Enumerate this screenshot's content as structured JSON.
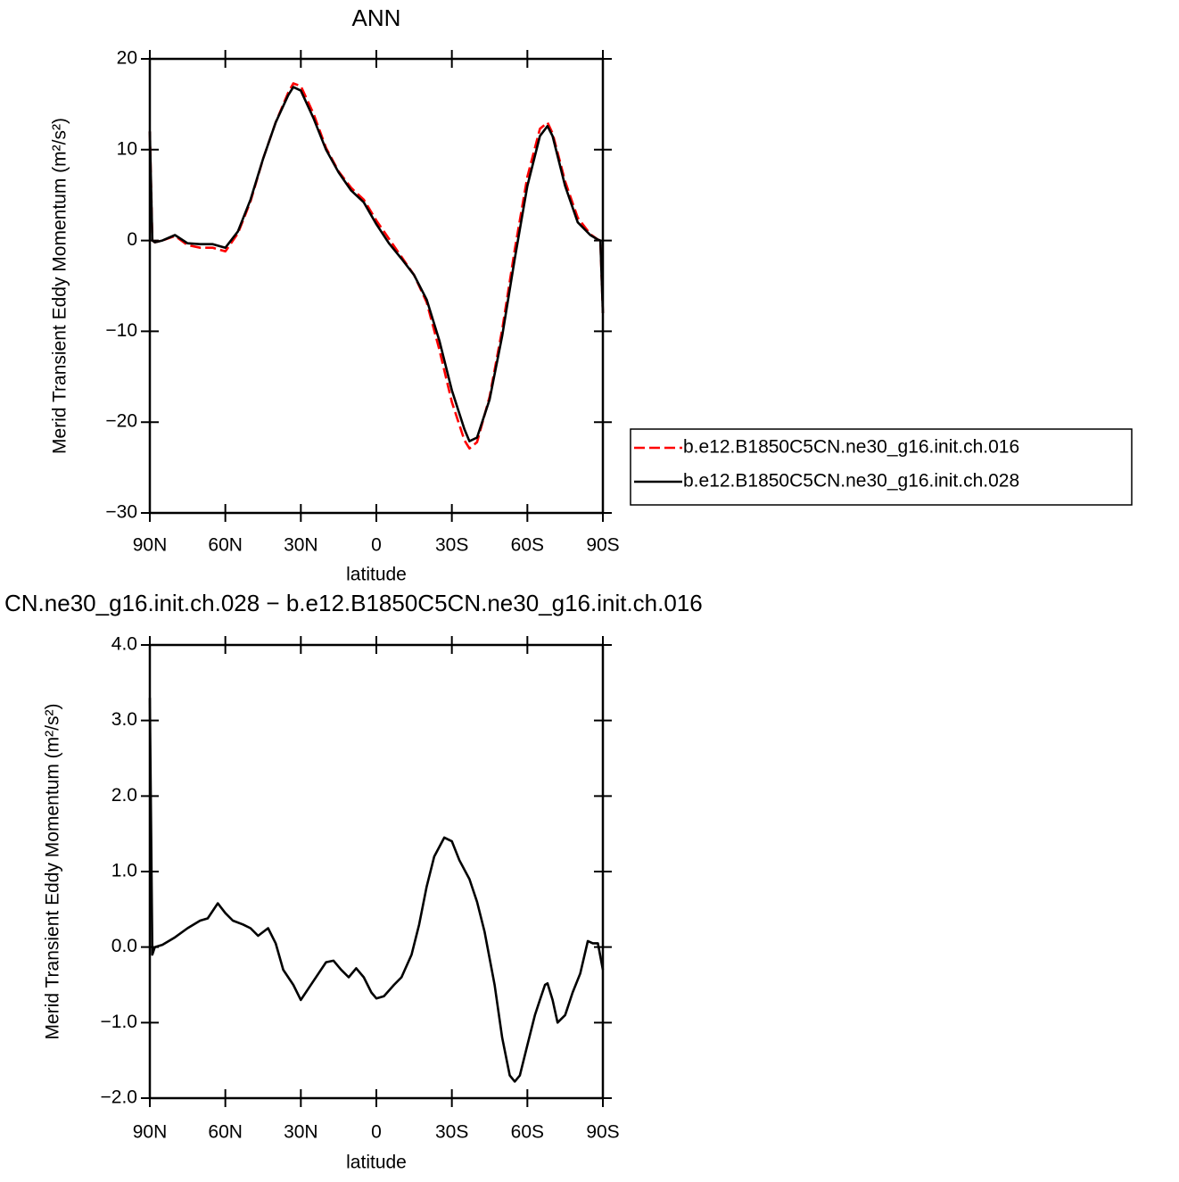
{
  "chart_data": [
    {
      "type": "line",
      "title": "ANN",
      "x_label": "latitude",
      "y_label": "Merid Transient Eddy Momentum (m²/s²)",
      "x": [
        90,
        89,
        88,
        85,
        80,
        75,
        70,
        65,
        60,
        55,
        50,
        45,
        40,
        35,
        33,
        30,
        25,
        20,
        15,
        10,
        5,
        0,
        -5,
        -10,
        -15,
        -20,
        -25,
        -30,
        -35,
        -37,
        -40,
        -45,
        -50,
        -55,
        -60,
        -65,
        -68,
        -70,
        -75,
        -80,
        -85,
        -88,
        -89,
        -90
      ],
      "xlim": [
        90,
        -90
      ],
      "xticks": [
        {
          "value": 90,
          "label": "90N"
        },
        {
          "value": 60,
          "label": "60N"
        },
        {
          "value": 30,
          "label": "30N"
        },
        0,
        {
          "value": -30,
          "label": "30S"
        },
        {
          "value": -60,
          "label": "60S"
        },
        {
          "value": -90,
          "label": "90S"
        }
      ],
      "ylim": [
        -30,
        20
      ],
      "yticks": [
        20,
        10,
        0,
        {
          "value": -10,
          "label": "−10"
        },
        {
          "value": -20,
          "label": "−20"
        },
        {
          "value": -30,
          "label": "−30"
        }
      ],
      "legend": "right",
      "series": [
        {
          "name": "b.e12.B1850C5CN.ne30_g16.init.ch.016",
          "color": "#ff0000",
          "dash": "dashed",
          "values": [
            12,
            0,
            -0.2,
            0,
            0.5,
            -0.5,
            -0.8,
            -0.8,
            -1.2,
            0.8,
            4.3,
            9,
            13,
            16.3,
            17.3,
            17,
            14,
            10.2,
            7.6,
            5.8,
            4.5,
            2.2,
            0.2,
            -1.8,
            -3.8,
            -6.8,
            -12,
            -17.8,
            -22,
            -22.9,
            -22.2,
            -17.2,
            -9.8,
            -1,
            7,
            12.3,
            13,
            11.8,
            6.5,
            2.5,
            0.7,
            0.1,
            0,
            -8
          ]
        },
        {
          "name": "b.e12.B1850C5CN.ne30_g16.init.ch.028",
          "color": "#000000",
          "dash": "solid",
          "values": [
            12,
            0,
            -0.2,
            0,
            0.6,
            -0.3,
            -0.4,
            -0.4,
            -0.8,
            1.0,
            4.5,
            9,
            13,
            16,
            16.9,
            16.5,
            13.5,
            10,
            7.5,
            5.5,
            4.2,
            1.8,
            -0.3,
            -2,
            -3.8,
            -6.5,
            -11,
            -16.5,
            -20.8,
            -22.1,
            -21.7,
            -17.5,
            -10.5,
            -2,
            6,
            11.5,
            12.6,
            11.5,
            6,
            2,
            0.6,
            0.1,
            0,
            -8
          ]
        }
      ]
    },
    {
      "type": "line",
      "title": "CN.ne30_g16.init.ch.028 − b.e12.B1850C5CN.ne30_g16.init.ch.016",
      "x_label": "latitude",
      "y_label": "Merid Transient Eddy Momentum (m²/s²)",
      "x": [
        90,
        89,
        88,
        85,
        80,
        75,
        70,
        67,
        63,
        60,
        57,
        53,
        50,
        47,
        43,
        40,
        37,
        33,
        30,
        27,
        23,
        20,
        17,
        14,
        11,
        8,
        5,
        2,
        0,
        -3,
        -7,
        -10,
        -14,
        -17,
        -20,
        -23,
        -27,
        -30,
        -33,
        -37,
        -40,
        -43,
        -47,
        -50,
        -53,
        -55,
        -57,
        -60,
        -63,
        -65,
        -67,
        -68,
        -70,
        -72,
        -75,
        -78,
        -81,
        -84,
        -86,
        -88,
        -90
      ],
      "xlim": [
        90,
        -90
      ],
      "xticks": [
        {
          "value": 90,
          "label": "90N"
        },
        {
          "value": 60,
          "label": "60N"
        },
        {
          "value": 30,
          "label": "30N"
        },
        0,
        {
          "value": -30,
          "label": "30S"
        },
        {
          "value": -60,
          "label": "60S"
        },
        {
          "value": -90,
          "label": "90S"
        }
      ],
      "ylim": [
        -2,
        4
      ],
      "yticks": [
        {
          "value": 4,
          "label": "4.0"
        },
        {
          "value": 3,
          "label": "3.0"
        },
        {
          "value": 2,
          "label": "2.0"
        },
        {
          "value": 1,
          "label": "1.0"
        },
        {
          "value": 0,
          "label": "0.0"
        },
        {
          "value": -1,
          "label": "−1.0"
        },
        {
          "value": -2,
          "label": "−2.0"
        }
      ],
      "series": [
        {
          "color": "#000000",
          "dash": "solid",
          "values": [
            3.3,
            -0.1,
            0,
            0.03,
            0.13,
            0.25,
            0.35,
            0.38,
            0.58,
            0.45,
            0.35,
            0.3,
            0.25,
            0.15,
            0.25,
            0.05,
            -0.3,
            -0.5,
            -0.7,
            -0.55,
            -0.35,
            -0.2,
            -0.18,
            -0.3,
            -0.4,
            -0.28,
            -0.4,
            -0.6,
            -0.68,
            -0.65,
            -0.5,
            -0.4,
            -0.1,
            0.3,
            0.8,
            1.2,
            1.45,
            1.4,
            1.15,
            0.9,
            0.6,
            0.2,
            -0.5,
            -1.2,
            -1.7,
            -1.78,
            -1.7,
            -1.3,
            -0.9,
            -0.7,
            -0.5,
            -0.48,
            -0.7,
            -1.0,
            -0.9,
            -0.6,
            -0.35,
            0.08,
            0.05,
            0.05,
            -0.3
          ]
        }
      ]
    }
  ]
}
